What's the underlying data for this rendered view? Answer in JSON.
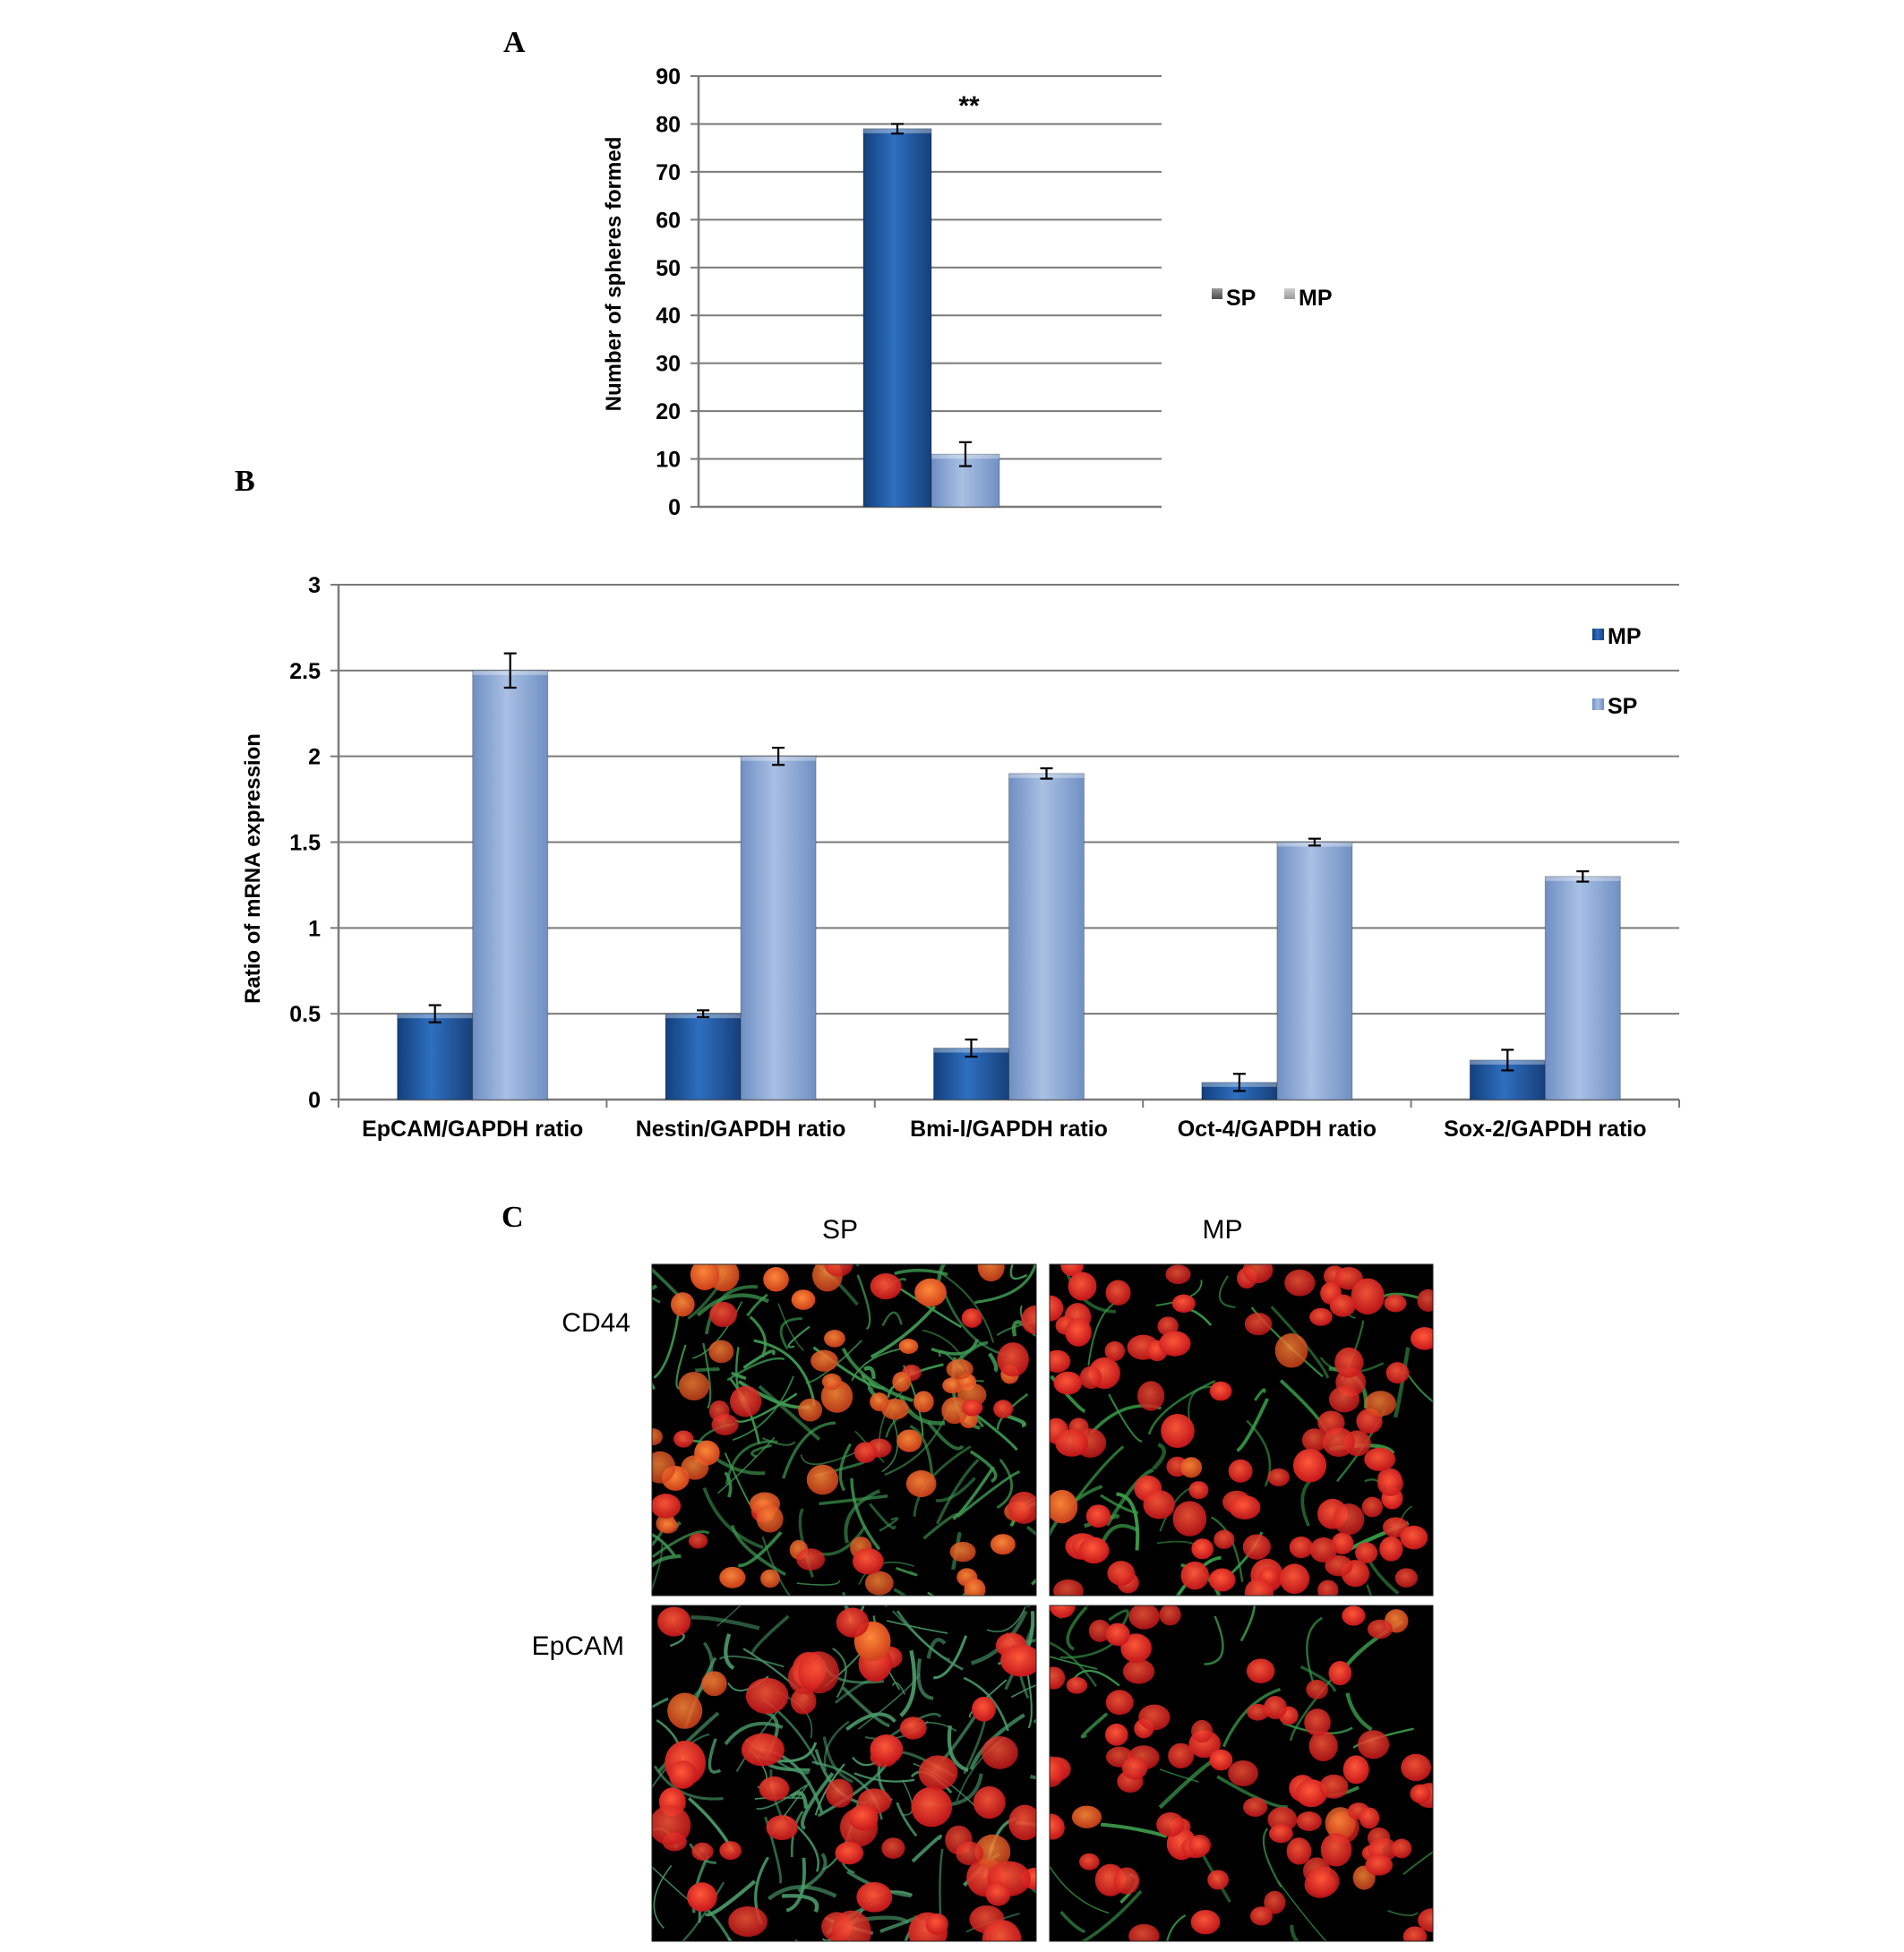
{
  "panels": {
    "a_label": "A",
    "b_label": "B",
    "c_label": "C"
  },
  "colors": {
    "dark_blue": "#1f5aa6",
    "light_blue": "#8eabd8",
    "grid": "#808080",
    "cell_nucleus": "#e0201a",
    "cell_membrane": "#3f8f4a",
    "background": "#000000"
  },
  "chart_data": [
    {
      "type": "bar",
      "panel": "A",
      "ylabel": "Number of spheres  formed",
      "xlabel": "",
      "ylim": [
        0,
        90
      ],
      "yticks": [
        "0",
        "10",
        "20",
        "30",
        "40",
        "50",
        "60",
        "70",
        "80",
        "90"
      ],
      "grid": true,
      "legend_placement": "right",
      "annotation": "**",
      "series": [
        {
          "name": "SP",
          "values": [
            79
          ],
          "errors": [
            1
          ]
        },
        {
          "name": "MP",
          "values": [
            11
          ],
          "errors": [
            2.5
          ]
        }
      ]
    },
    {
      "type": "bar",
      "panel": "B",
      "ylabel": "Ratio of  mRNA expression",
      "xlabel": "",
      "ylim": [
        0,
        3
      ],
      "yticks": [
        "0",
        "0.5",
        "1",
        "1.5",
        "2",
        "2.5",
        "3"
      ],
      "grid": true,
      "legend_placement": "top-right",
      "categories": [
        "EpCAM/GAPDH ratio",
        "Nestin/GAPDH ratio",
        "Bmi-l/GAPDH ratio",
        "Oct-4/GAPDH ratio",
        "Sox-2/GAPDH ratio"
      ],
      "series": [
        {
          "name": "MP",
          "values": [
            0.5,
            0.5,
            0.3,
            0.1,
            0.23
          ],
          "errors": [
            0.05,
            0.02,
            0.05,
            0.05,
            0.06
          ]
        },
        {
          "name": "SP",
          "values": [
            2.5,
            2.0,
            1.9,
            1.5,
            1.3
          ],
          "errors": [
            0.1,
            0.05,
            0.03,
            0.02,
            0.03
          ]
        }
      ]
    }
  ],
  "microscopy": {
    "columns": [
      "SP",
      "MP"
    ],
    "rows": [
      "CD44",
      "EpCAM"
    ]
  }
}
